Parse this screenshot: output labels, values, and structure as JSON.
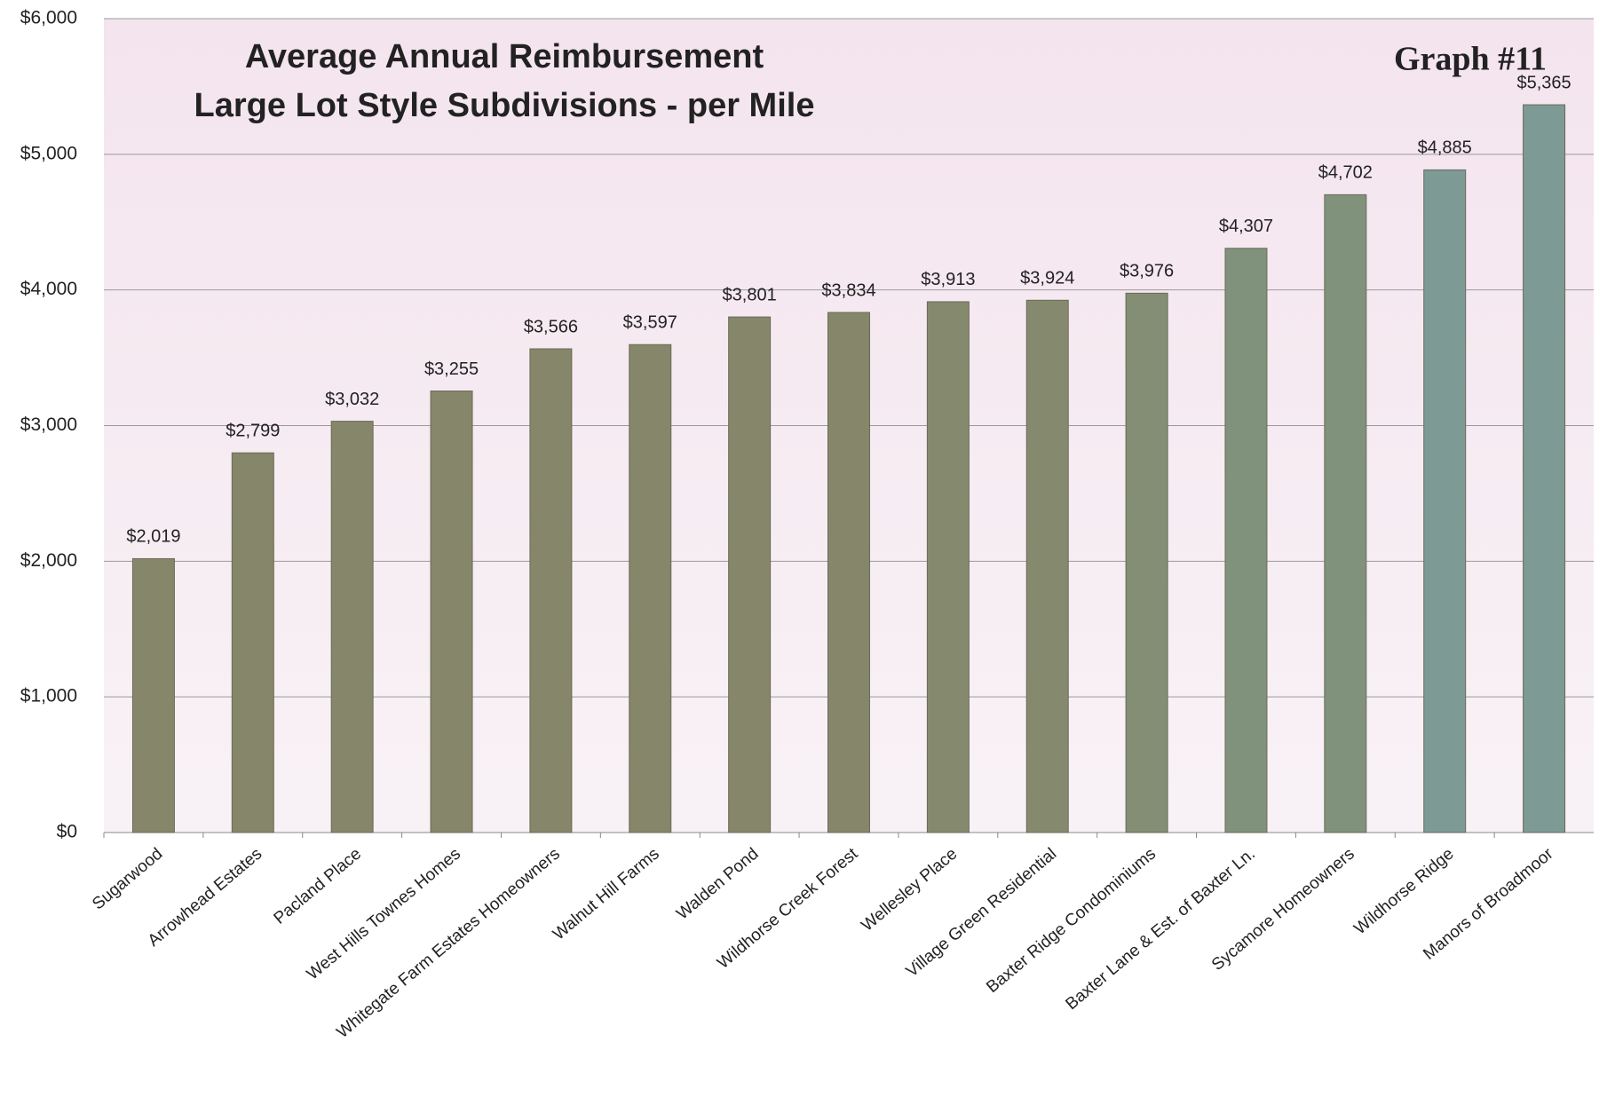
{
  "chart_data": {
    "type": "bar",
    "title": "Average Annual Reimbursement",
    "subtitle": "Large Lot Style Subdivisions - per Mile",
    "annotation": "Graph #11",
    "categories": [
      "Sugarwood",
      "Arrowhead Estates",
      "Pacland Place",
      "West Hills Townes Homes",
      "Whitegate Farm Estates Homeowners",
      "Walnut Hill Farms",
      "Walden Pond",
      "Wildhorse Creek Forest",
      "Wellesley Place",
      "Village Green Residential",
      "Baxter Ridge Condominiums",
      "Baxter Lane & Est. of Baxter Ln.",
      "Sycamore Homeowners",
      "Wildhorse Ridge",
      "Manors of Broadmoor"
    ],
    "values": [
      2019,
      2799,
      3032,
      3255,
      3566,
      3597,
      3801,
      3834,
      3913,
      3924,
      3976,
      4307,
      4702,
      4885,
      5365
    ],
    "value_labels": [
      "$2,019",
      "$2,799",
      "$3,032",
      "$3,255",
      "$3,566",
      "$3,597",
      "$3,801",
      "$3,834",
      "$3,913",
      "$3,924",
      "$3,976",
      "$4,307",
      "$4,702",
      "$4,885",
      "$5,365"
    ],
    "colors": [
      "#86866a",
      "#86866a",
      "#86866a",
      "#86866a",
      "#86866a",
      "#86866a",
      "#86866a",
      "#86866a",
      "#858a6e",
      "#858a6e",
      "#838e74",
      "#80927c",
      "#80927c",
      "#7d9a94",
      "#7d9a94"
    ],
    "ylim": [
      0,
      6000
    ],
    "yticks": [
      {
        "value": 0,
        "label": "$0"
      },
      {
        "value": 1000,
        "label": "$1,000"
      },
      {
        "value": 2000,
        "label": "$2,000"
      },
      {
        "value": 3000,
        "label": "$3,000"
      },
      {
        "value": 4000,
        "label": "$4,000"
      },
      {
        "value": 5000,
        "label": "$5,000"
      },
      {
        "value": 6000,
        "label": "$6,000"
      }
    ],
    "grid": true
  }
}
